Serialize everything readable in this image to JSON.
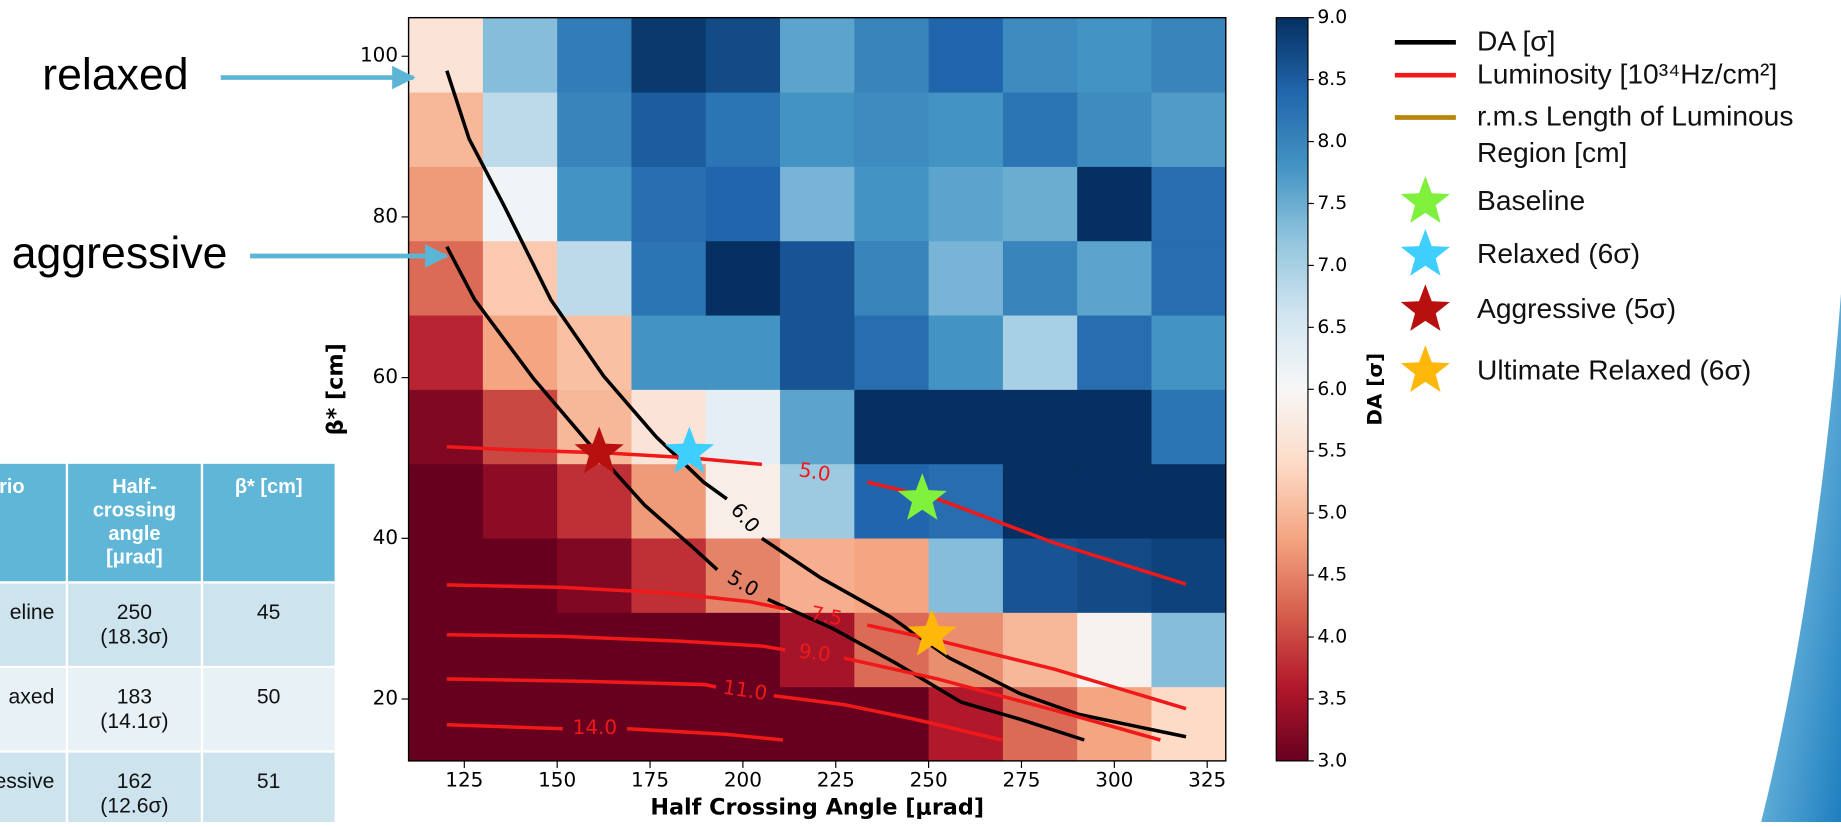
{
  "chart_data": {
    "type": "heatmap",
    "xlabel": "Half Crossing Angle [μrad]",
    "ylabel": "β* [cm]",
    "colorbar_label": "DA [σ]",
    "xlim": [
      110,
      330
    ],
    "ylim": [
      12.3,
      104.8
    ],
    "xticks": [
      125,
      150,
      175,
      200,
      225,
      250,
      275,
      300,
      325
    ],
    "yticks": [
      20,
      40,
      60,
      80,
      100
    ],
    "xbins": [
      110,
      130,
      150,
      170,
      190,
      210,
      230,
      250,
      270,
      290,
      310,
      330
    ],
    "ybins": [
      12.3,
      21.55,
      30.8,
      40.05,
      49.3,
      58.55,
      67.8,
      77.05,
      86.3,
      95.55,
      104.8
    ],
    "z": [
      [
        3.0,
        3.0,
        3.0,
        3.0,
        3.0,
        3.0,
        3.0,
        3.6,
        4.3,
        4.8,
        5.4
      ],
      [
        3.0,
        3.0,
        3.0,
        3.0,
        3.0,
        3.5,
        4.3,
        4.6,
        5.0,
        5.9,
        7.3
      ],
      [
        3.0,
        3.0,
        3.2,
        3.8,
        4.5,
        4.9,
        4.8,
        7.3,
        8.6,
        8.7,
        8.8
      ],
      [
        3.0,
        3.3,
        3.8,
        4.7,
        5.8,
        7.1,
        8.4,
        8.3,
        9.0,
        9.0,
        9.0
      ],
      [
        3.2,
        4.0,
        5.0,
        5.6,
        6.3,
        7.6,
        9.0,
        9.0,
        9.0,
        9.0,
        8.2
      ],
      [
        3.7,
        4.8,
        5.1,
        7.8,
        7.8,
        8.6,
        8.3,
        7.8,
        7.0,
        8.3,
        7.8
      ],
      [
        4.3,
        5.2,
        6.8,
        8.2,
        9.0,
        8.6,
        8.0,
        7.4,
        8.0,
        7.6,
        8.3
      ],
      [
        4.7,
        6.1,
        7.8,
        8.3,
        8.4,
        7.4,
        7.8,
        7.6,
        7.5,
        9.0,
        8.3
      ],
      [
        5.0,
        6.8,
        8.0,
        8.5,
        8.2,
        7.8,
        7.9,
        7.8,
        8.2,
        7.9,
        7.7
      ],
      [
        5.6,
        7.3,
        8.1,
        8.9,
        8.7,
        7.6,
        8.0,
        8.4,
        7.9,
        7.8,
        8.0
      ]
    ],
    "zlim": [
      3,
      9
    ],
    "colorscale": [
      "#67001f",
      "#b2182b",
      "#d6604d",
      "#f4a582",
      "#fddbc7",
      "#f7f7f7",
      "#d1e5f0",
      "#92c5de",
      "#4393c3",
      "#2166ac",
      "#053061"
    ],
    "zticks": [
      {
        "value": 3,
        "label": "3.0"
      },
      {
        "value": 3.5,
        "label": "3.5"
      },
      {
        "value": 4,
        "label": "4.0"
      },
      {
        "value": 4.5,
        "label": "4.5"
      },
      {
        "value": 5,
        "label": "5.0"
      },
      {
        "value": 5.5,
        "label": "5.5"
      },
      {
        "value": 6,
        "label": "6.0"
      },
      {
        "value": 6.5,
        "label": "6.5"
      },
      {
        "value": 7,
        "label": "7.0"
      },
      {
        "value": 7.5,
        "label": "7.5"
      },
      {
        "value": 8,
        "label": "8.0"
      },
      {
        "value": 8.5,
        "label": "8.5"
      },
      {
        "value": 9,
        "label": "9.0"
      }
    ],
    "lines": [
      {
        "name": "DA [σ]",
        "color": "#000000",
        "contours": [
          {
            "label": "6.0",
            "x": [
              120.3,
              126.3,
              135.7,
              148.3,
              162.5,
              176.7,
              189.4,
              195.7,
              null,
              205.1,
              220.9,
              239.8,
              255.6,
              274.5,
              290.3,
              319.3
            ],
            "y": [
              98.2,
              89.7,
              81.4,
              69.7,
              60.2,
              52.6,
              47.0,
              44.9,
              null,
              40.0,
              35.1,
              30.2,
              25.1,
              20.7,
              18.1,
              15.3
            ]
          },
          {
            "label": "5.0",
            "x": [
              120.3,
              127.8,
              143.6,
              157.8,
              173.6,
              186.2,
              193.1,
              null,
              206.7,
              224.1,
              241.4,
              258.8,
              274.5,
              291.9
            ],
            "y": [
              76.3,
              69.7,
              59.9,
              52.2,
              44.1,
              39.0,
              36.1,
              null,
              32.4,
              28.8,
              24.4,
              19.6,
              17.5,
              14.9
            ]
          }
        ]
      },
      {
        "name": "Luminosity [10³⁴Hz/cm²]",
        "color": "#f01818",
        "contours": [
          {
            "label": "5.0",
            "x": [
              120.3,
              138.9,
              164.1,
              186.2,
              205.1,
              null,
              233.5,
              252.4,
              284.0,
              319.3
            ],
            "y": [
              51.4,
              51.0,
              50.6,
              50.0,
              49.2,
              null,
              47.0,
              44.9,
              39.4,
              34.3
            ]
          },
          {
            "label": "7.5",
            "x": [
              120.3,
              151.5,
              179.9,
              202.0,
              211.4,
              null,
              233.5,
              252.4,
              284.0,
              319.3
            ],
            "y": [
              34.2,
              33.9,
              33.2,
              32.1,
              31.2,
              null,
              29.2,
              27.3,
              23.7,
              18.8
            ]
          },
          {
            "label": "9.0",
            "x": [
              120.3,
              151.5,
              183.0,
              205.1,
              211.4,
              null,
              227.2,
              252.4,
              284.0,
              312.4
            ],
            "y": [
              28.0,
              27.8,
              27.2,
              26.6,
              26.1,
              null,
              25.1,
              22.5,
              18.6,
              14.9
            ]
          },
          {
            "label": "11.0",
            "x": [
              120.3,
              158.0,
              189.6,
              192.8,
              null,
              208.3,
              227.2,
              246.1,
              269.8
            ],
            "y": [
              22.5,
              22.2,
              21.8,
              21.5,
              null,
              20.4,
              19.3,
              17.5,
              14.9
            ]
          },
          {
            "label": "14.0",
            "x": [
              120.3,
              151.5,
              null,
              168.8,
              195.7,
              210.8
            ],
            "y": [
              16.8,
              16.3,
              null,
              16.3,
              15.6,
              14.9
            ]
          }
        ]
      },
      {
        "name": "r.m.s Length of Luminous Region [cm]",
        "color": "#b8860b",
        "contours": []
      }
    ],
    "series": [
      {
        "name": "Baseline",
        "color": "#7ff03c",
        "x": 248.3,
        "y": 44.9
      },
      {
        "name": "Relaxed (6σ)",
        "color": "#3fcfff",
        "x": 185.6,
        "y": 50.7
      },
      {
        "name": "Aggressive (5σ)",
        "color": "#b80f0f",
        "x": 161.3,
        "y": 50.7
      },
      {
        "name": "Ultimate Relaxed (6σ)",
        "color": "#ffb80a",
        "x": 250.9,
        "y": 28.0
      }
    ]
  },
  "annotations": [
    {
      "text": "relaxed"
    },
    {
      "text": "aggressive"
    }
  ],
  "table": {
    "header": [
      "nario",
      "Half-crossing angle [μrad]",
      "β* [cm]"
    ],
    "rows": [
      [
        "eline",
        "250 (18.3σ)",
        "45"
      ],
      [
        "axed",
        "183 (14.1σ)",
        "50"
      ],
      [
        "essive",
        "162 (12.6σ)",
        "51"
      ]
    ]
  }
}
